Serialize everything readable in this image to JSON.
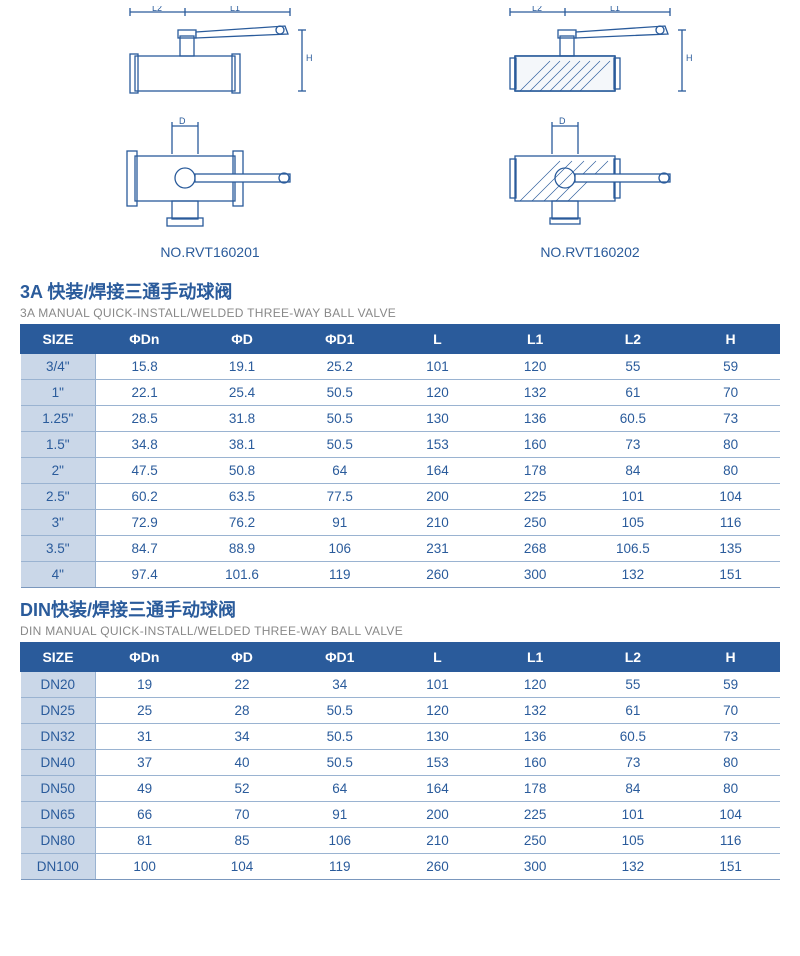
{
  "diagrams": {
    "left_label": "NO.RVT160201",
    "right_label": "NO.RVT160202",
    "stroke": "#2a5b9b",
    "dim_labels": {
      "L1": "L1",
      "L2": "L2",
      "H": "H",
      "D": "D"
    }
  },
  "tables": [
    {
      "title_cn": "3A 快装/焊接三通手动球阀",
      "title_en": "3A MANUAL QUICK-INSTALL/WELDED THREE-WAY BALL VALVE",
      "columns": [
        "SIZE",
        "ΦDn",
        "ΦD",
        "ΦD1",
        "L",
        "L1",
        "L2",
        "H"
      ],
      "rows": [
        [
          "3/4\"",
          "15.8",
          "19.1",
          "25.2",
          "101",
          "120",
          "55",
          "59"
        ],
        [
          "1\"",
          "22.1",
          "25.4",
          "50.5",
          "120",
          "132",
          "61",
          "70"
        ],
        [
          "1.25\"",
          "28.5",
          "31.8",
          "50.5",
          "130",
          "136",
          "60.5",
          "73"
        ],
        [
          "1.5\"",
          "34.8",
          "38.1",
          "50.5",
          "153",
          "160",
          "73",
          "80"
        ],
        [
          "2\"",
          "47.5",
          "50.8",
          "64",
          "164",
          "178",
          "84",
          "80"
        ],
        [
          "2.5\"",
          "60.2",
          "63.5",
          "77.5",
          "200",
          "225",
          "101",
          "104"
        ],
        [
          "3\"",
          "72.9",
          "76.2",
          "91",
          "210",
          "250",
          "105",
          "116"
        ],
        [
          "3.5\"",
          "84.7",
          "88.9",
          "106",
          "231",
          "268",
          "106.5",
          "135"
        ],
        [
          "4\"",
          "97.4",
          "101.6",
          "119",
          "260",
          "300",
          "132",
          "151"
        ]
      ]
    },
    {
      "title_cn": "DIN快装/焊接三通手动球阀",
      "title_en": "DIN MANUAL QUICK-INSTALL/WELDED THREE-WAY BALL VALVE",
      "columns": [
        "SIZE",
        "ΦDn",
        "ΦD",
        "ΦD1",
        "L",
        "L1",
        "L2",
        "H"
      ],
      "rows": [
        [
          "DN20",
          "19",
          "22",
          "34",
          "101",
          "120",
          "55",
          "59"
        ],
        [
          "DN25",
          "25",
          "28",
          "50.5",
          "120",
          "132",
          "61",
          "70"
        ],
        [
          "DN32",
          "31",
          "34",
          "50.5",
          "130",
          "136",
          "60.5",
          "73"
        ],
        [
          "DN40",
          "37",
          "40",
          "50.5",
          "153",
          "160",
          "73",
          "80"
        ],
        [
          "DN50",
          "49",
          "52",
          "64",
          "164",
          "178",
          "84",
          "80"
        ],
        [
          "DN65",
          "66",
          "70",
          "91",
          "200",
          "225",
          "101",
          "104"
        ],
        [
          "DN80",
          "81",
          "85",
          "106",
          "210",
          "250",
          "105",
          "116"
        ],
        [
          "DN100",
          "100",
          "104",
          "119",
          "260",
          "300",
          "132",
          "151"
        ]
      ]
    }
  ],
  "styling": {
    "header_bg": "#2a5b9b",
    "header_fg": "#ffffff",
    "size_col_bg": "#cad7e8",
    "cell_color": "#2a5b9b",
    "row_border": "#9ab3d1",
    "title_color": "#2a5b9b",
    "subtitle_color": "#888888",
    "title_fontsize": 18,
    "subtitle_fontsize": 12,
    "header_fontsize": 14,
    "cell_fontsize": 13.5
  }
}
